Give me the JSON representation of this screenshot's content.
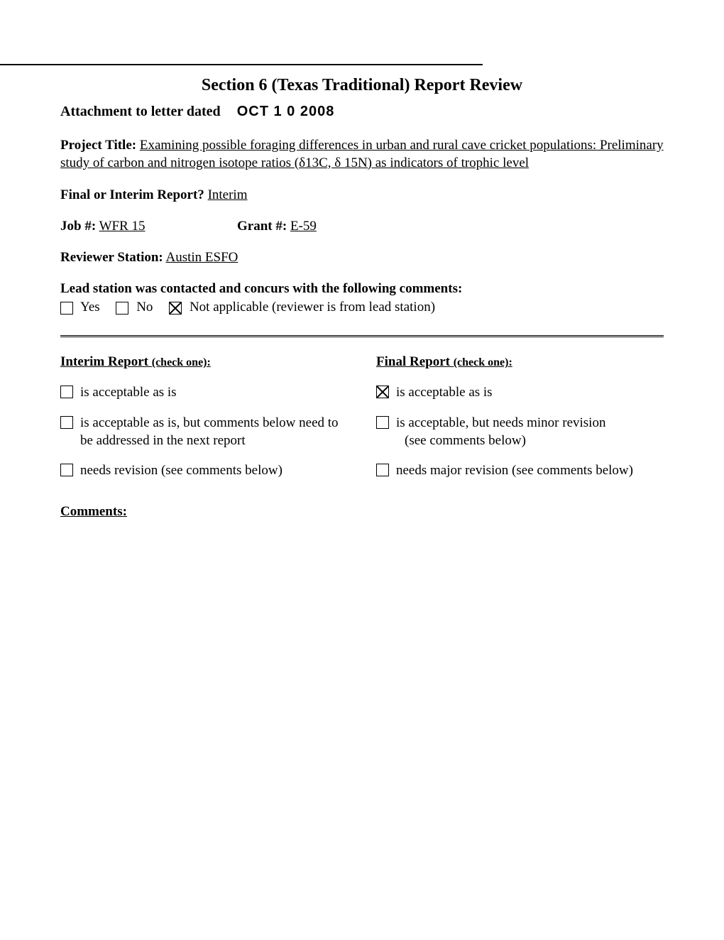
{
  "section_title": "Section 6 (Texas Traditional) Report Review",
  "attachment_label": "Attachment to letter dated",
  "attachment_date": "OCT 1 0 2008",
  "project_title_label": "Project Title:",
  "project_title_value": "Examining possible foraging differences in urban and rural cave cricket populations: Preliminary study of carbon and nitrogen isotope ratios (δ13C, δ 15N) as indicators of trophic level",
  "final_interim_label": "Final or Interim Report?",
  "final_interim_value": "Interim",
  "job_label": "Job #:",
  "job_value": "WFR 15",
  "grant_label": "Grant #:",
  "grant_value": "E-59",
  "reviewer_label": "Reviewer Station:",
  "reviewer_value": "Austin ESFO",
  "lead_station_text": "Lead station was contacted and concurs with the following comments:",
  "lead_options": {
    "yes": "Yes",
    "no": "No",
    "na": "Not applicable (reviewer is from lead station)"
  },
  "interim_header": "Interim Report",
  "final_header": "Final Report",
  "check_one": "(check one):",
  "interim_options": {
    "opt1": "is acceptable as is",
    "opt2": "is acceptable as is, but comments below need to be addressed in the next report",
    "opt3": "needs revision (see comments below)"
  },
  "final_options": {
    "opt1": "is acceptable as is",
    "opt2_line1": "is acceptable, but needs minor revision",
    "opt2_line2": "(see comments below)",
    "opt3": "needs major revision (see comments below)"
  },
  "comments_label": "Comments:",
  "colors": {
    "text": "#000000",
    "background": "#ffffff"
  },
  "typography": {
    "body_font": "Times New Roman",
    "body_size": 19,
    "title_size": 24,
    "small_size": 16
  }
}
